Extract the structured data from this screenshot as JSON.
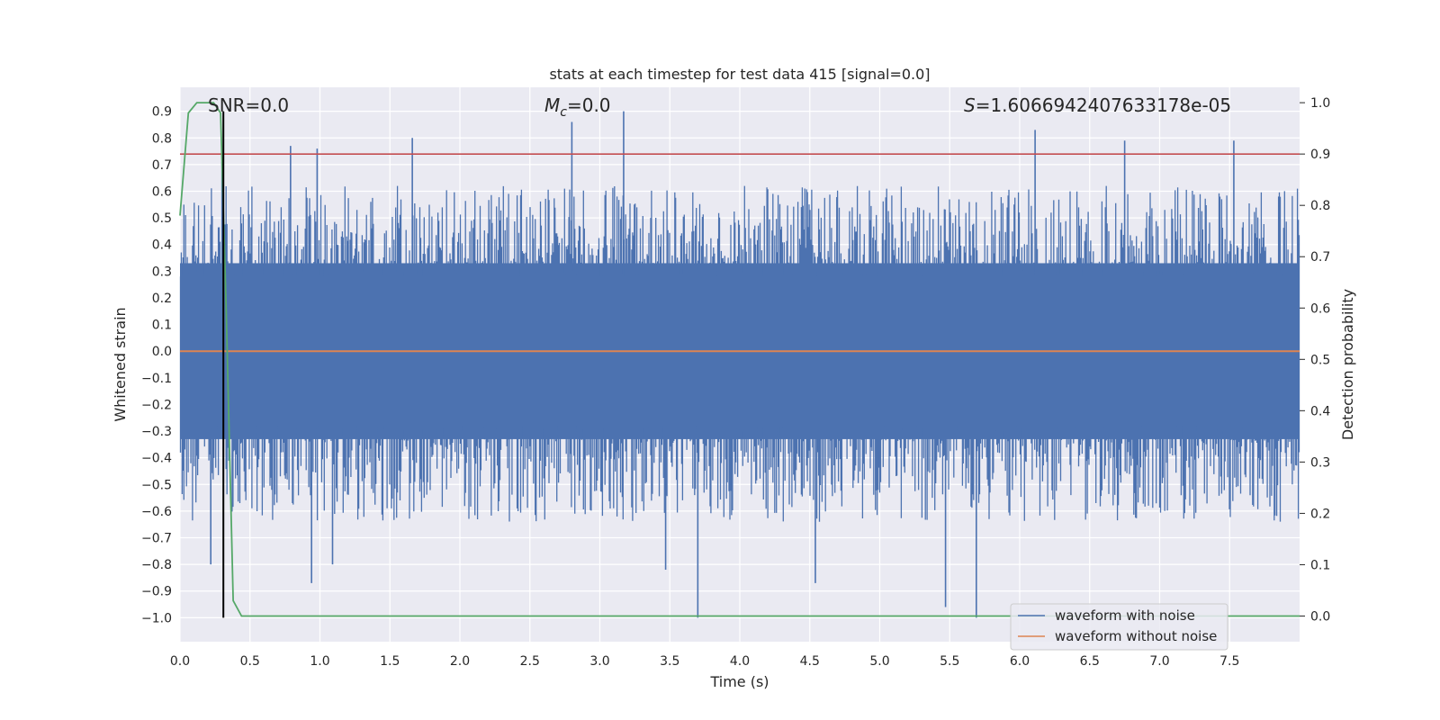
{
  "chart_data": {
    "type": "line",
    "title": "stats at each timestep for test data 415 [signal=0.0]",
    "xlabel": "Time (s)",
    "ylabel_left": "Whitened strain",
    "ylabel_right": "Detection probability",
    "xlim": [
      0.0,
      8.0
    ],
    "ylim_left": [
      -1.09,
      0.99
    ],
    "ylim_right": [
      -0.05,
      1.03
    ],
    "x_ticks": [
      "0.0",
      "0.5",
      "1.0",
      "1.5",
      "2.0",
      "2.5",
      "3.0",
      "3.5",
      "4.0",
      "4.5",
      "5.0",
      "5.5",
      "6.0",
      "6.5",
      "7.0",
      "7.5"
    ],
    "y_left_ticks": [
      "0.9",
      "0.8",
      "0.7",
      "0.6",
      "0.5",
      "0.4",
      "0.3",
      "0.2",
      "0.1",
      "0.0",
      "−0.1",
      "−0.2",
      "−0.3",
      "−0.4",
      "−0.5",
      "−0.6",
      "−0.7",
      "−0.8",
      "−0.9",
      "−1.0"
    ],
    "y_right_ticks": [
      "1.0",
      "0.9",
      "0.8",
      "0.7",
      "0.6",
      "0.5",
      "0.4",
      "0.3",
      "0.2",
      "0.1",
      "0.0"
    ],
    "annotations": {
      "snr": "SNR=0.0",
      "mc_symbol": "M",
      "mc_sub": "c",
      "mc_value": "=0.0",
      "s_symbol": "S",
      "s_value": "=1.6066942407633178e-05"
    },
    "threshold_line": {
      "axis": "right",
      "value": 0.9,
      "color": "#c44e52"
    },
    "marker_line": {
      "x": 0.31,
      "y_range_left": [
        -1.0,
        0.9
      ],
      "color": "#000000"
    },
    "grid": true,
    "legend_position": "lower-right",
    "series": [
      {
        "name": "waveform with noise",
        "color": "#4c72b0",
        "axis": "left",
        "description_range": "dense noise roughly between -1.0 and 0.9",
        "spikes": [
          {
            "x": 0.22,
            "y": -0.8
          },
          {
            "x": 0.3,
            "y": 0.71
          },
          {
            "x": 0.79,
            "y": 0.77
          },
          {
            "x": 0.94,
            "y": -0.87
          },
          {
            "x": 0.98,
            "y": 0.76
          },
          {
            "x": 1.09,
            "y": -0.8
          },
          {
            "x": 1.66,
            "y": 0.8
          },
          {
            "x": 2.8,
            "y": 0.86
          },
          {
            "x": 3.17,
            "y": 0.9
          },
          {
            "x": 3.47,
            "y": -0.82
          },
          {
            "x": 3.7,
            "y": -1.0
          },
          {
            "x": 4.54,
            "y": -0.87
          },
          {
            "x": 5.47,
            "y": -0.96
          },
          {
            "x": 5.69,
            "y": -1.0
          },
          {
            "x": 6.11,
            "y": 0.83
          },
          {
            "x": 6.75,
            "y": 0.79
          },
          {
            "x": 7.53,
            "y": 0.79
          }
        ]
      },
      {
        "name": "waveform without noise",
        "color": "#dd8452",
        "axis": "left",
        "x": [
          0.0,
          8.0
        ],
        "y": [
          0.0,
          0.0
        ]
      },
      {
        "name": "",
        "color": "#55a868",
        "axis": "right",
        "x": [
          0.0,
          0.06,
          0.12,
          0.24,
          0.29,
          0.33,
          0.38,
          0.44,
          8.0
        ],
        "y": [
          0.78,
          0.98,
          1.0,
          1.0,
          0.98,
          0.6,
          0.03,
          0.0,
          0.0
        ]
      }
    ]
  }
}
